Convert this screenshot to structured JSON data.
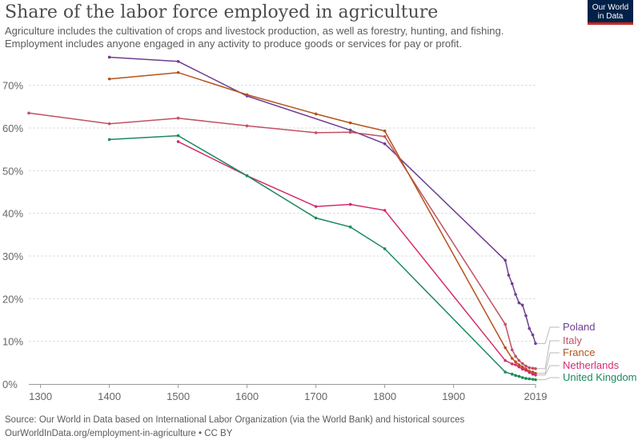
{
  "header": {
    "title": "Share of the labor force employed in agriculture",
    "subtitle_line1": "Agriculture includes the cultivation of crops and livestock production, as well as forestry, hunting, and fishing.",
    "subtitle_line2": "Employment includes anyone engaged in any activity to produce goods or services for pay or profit."
  },
  "logo": {
    "line1": "Our World",
    "line2": "in Data",
    "bg_color": "#002147",
    "accent_color": "#ce261e"
  },
  "footer": {
    "source": "Source: Our World in Data based on International Labor Organization (via the World Bank) and historical sources",
    "url": "OurWorldInData.org/employment-in-agriculture • CC BY"
  },
  "chart_data": {
    "type": "line",
    "title": "Share of the labor force employed in agriculture",
    "xlabel": "",
    "ylabel": "",
    "xlim": [
      1283,
      2019
    ],
    "ylim": [
      0,
      75
    ],
    "x_ticks": [
      "1300",
      "1400",
      "1500",
      "1600",
      "1700",
      "1800",
      "1900",
      "2019"
    ],
    "x_tick_values": [
      1300,
      1400,
      1500,
      1600,
      1700,
      1800,
      1900,
      2019
    ],
    "y_ticks": [
      "0%",
      "10%",
      "20%",
      "30%",
      "40%",
      "50%",
      "60%",
      "70%"
    ],
    "y_tick_values": [
      0,
      10,
      20,
      30,
      40,
      50,
      60,
      70
    ],
    "grid": "horizontal dotted",
    "legend_placement": "right end labels",
    "series": [
      {
        "name": "Poland",
        "color": "#6d3e91",
        "points": [
          [
            1400,
            76.6
          ],
          [
            1500,
            75.6
          ],
          [
            1600,
            67.5
          ],
          [
            1750,
            59.5
          ],
          [
            1800,
            56.3
          ],
          [
            1975,
            29.0
          ],
          [
            1980,
            25.5
          ],
          [
            1985,
            23.5
          ],
          [
            1990,
            21.0
          ],
          [
            1995,
            19.0
          ],
          [
            2000,
            18.5
          ],
          [
            2005,
            16.0
          ],
          [
            2010,
            13.0
          ],
          [
            2015,
            11.5
          ],
          [
            2019,
            9.5
          ]
        ]
      },
      {
        "name": "Italy",
        "color": "#c15065",
        "points": [
          [
            1283,
            63.5
          ],
          [
            1400,
            61.0
          ],
          [
            1500,
            62.3
          ],
          [
            1600,
            60.5
          ],
          [
            1700,
            58.9
          ],
          [
            1750,
            59.0
          ],
          [
            1800,
            58.0
          ],
          [
            1975,
            14.0
          ],
          [
            1985,
            8.0
          ],
          [
            1990,
            6.5
          ],
          [
            1995,
            5.5
          ],
          [
            2000,
            4.8
          ],
          [
            2005,
            4.2
          ],
          [
            2010,
            3.8
          ],
          [
            2015,
            3.7
          ],
          [
            2019,
            3.6
          ]
        ]
      },
      {
        "name": "France",
        "color": "#b4531b",
        "points": [
          [
            1400,
            71.5
          ],
          [
            1500,
            73.0
          ],
          [
            1600,
            67.8
          ],
          [
            1700,
            63.3
          ],
          [
            1750,
            61.2
          ],
          [
            1800,
            59.3
          ],
          [
            1975,
            8.5
          ],
          [
            1985,
            6.0
          ],
          [
            1990,
            5.2
          ],
          [
            1995,
            4.5
          ],
          [
            2000,
            4.0
          ],
          [
            2005,
            3.5
          ],
          [
            2010,
            3.0
          ],
          [
            2015,
            2.8
          ],
          [
            2019,
            2.5
          ]
        ]
      },
      {
        "name": "Netherlands",
        "color": "#d42b6f",
        "points": [
          [
            1500,
            56.8
          ],
          [
            1600,
            48.8
          ],
          [
            1700,
            41.6
          ],
          [
            1750,
            42.1
          ],
          [
            1800,
            40.7
          ],
          [
            1975,
            5.5
          ],
          [
            1985,
            4.7
          ],
          [
            1990,
            4.5
          ],
          [
            1995,
            4.0
          ],
          [
            2000,
            3.5
          ],
          [
            2005,
            3.2
          ],
          [
            2010,
            2.7
          ],
          [
            2015,
            2.3
          ],
          [
            2019,
            2.1
          ]
        ]
      },
      {
        "name": "United Kingdom",
        "color": "#1b8a5b",
        "points": [
          [
            1400,
            57.3
          ],
          [
            1500,
            58.2
          ],
          [
            1600,
            48.8
          ],
          [
            1700,
            38.9
          ],
          [
            1750,
            36.8
          ],
          [
            1800,
            31.7
          ],
          [
            1975,
            2.8
          ],
          [
            1985,
            2.3
          ],
          [
            1990,
            2.0
          ],
          [
            1995,
            1.8
          ],
          [
            2000,
            1.5
          ],
          [
            2005,
            1.3
          ],
          [
            2010,
            1.2
          ],
          [
            2015,
            1.1
          ],
          [
            2019,
            1.0
          ]
        ]
      }
    ]
  }
}
